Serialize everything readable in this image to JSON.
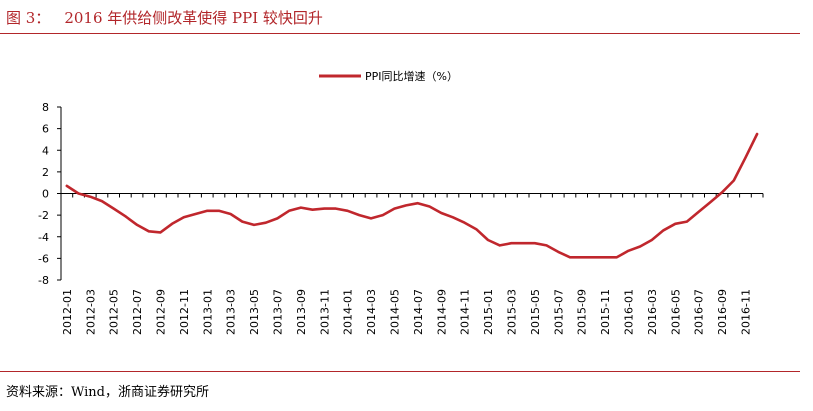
{
  "header": {
    "figure_label": "图 3：",
    "title": "2016 年供给侧改革使得 PPI 较快回升"
  },
  "footer": {
    "source": "资料来源：Wind，浙商证券研究所"
  },
  "colors": {
    "accent": "#b2262a",
    "series": "#c0272d",
    "axis": "#000000"
  },
  "chart_data": {
    "type": "line",
    "title": "",
    "xlabel": "",
    "ylabel": "",
    "ylim": [
      -8,
      8
    ],
    "yticks": [
      "8",
      "6",
      "4",
      "2",
      "0",
      "-2",
      "-4",
      "-6",
      "-8"
    ],
    "grid": false,
    "legend_position": "top-center",
    "x": [
      "2012-01",
      "2012-02",
      "2012-03",
      "2012-04",
      "2012-05",
      "2012-06",
      "2012-07",
      "2012-08",
      "2012-09",
      "2012-10",
      "2012-11",
      "2012-12",
      "2013-01",
      "2013-02",
      "2013-03",
      "2013-04",
      "2013-05",
      "2013-06",
      "2013-07",
      "2013-08",
      "2013-09",
      "2013-10",
      "2013-11",
      "2013-12",
      "2014-01",
      "2014-02",
      "2014-03",
      "2014-04",
      "2014-05",
      "2014-06",
      "2014-07",
      "2014-08",
      "2014-09",
      "2014-10",
      "2014-11",
      "2014-12",
      "2015-01",
      "2015-02",
      "2015-03",
      "2015-04",
      "2015-05",
      "2015-06",
      "2015-07",
      "2015-08",
      "2015-09",
      "2015-10",
      "2015-11",
      "2015-12",
      "2016-01",
      "2016-02",
      "2016-03",
      "2016-04",
      "2016-05",
      "2016-06",
      "2016-07",
      "2016-08",
      "2016-09",
      "2016-10",
      "2016-11",
      "2016-12"
    ],
    "x_tick_labels": [
      "2012-01",
      "2012-03",
      "2012-05",
      "2012-07",
      "2012-09",
      "2012-11",
      "2013-01",
      "2013-03",
      "2013-05",
      "2013-07",
      "2013-09",
      "2013-11",
      "2014-01",
      "2014-03",
      "2014-05",
      "2014-07",
      "2014-09",
      "2014-11",
      "2015-01",
      "2015-03",
      "2015-05",
      "2015-07",
      "2015-09",
      "2015-11",
      "2016-01",
      "2016-03",
      "2016-05",
      "2016-07",
      "2016-09",
      "2016-11"
    ],
    "series": [
      {
        "name": "PPI同比增速（%）",
        "values": [
          0.7,
          0.0,
          -0.3,
          -0.7,
          -1.4,
          -2.1,
          -2.9,
          -3.5,
          -3.6,
          -2.8,
          -2.2,
          -1.9,
          -1.6,
          -1.6,
          -1.9,
          -2.6,
          -2.9,
          -2.7,
          -2.3,
          -1.6,
          -1.3,
          -1.5,
          -1.4,
          -1.4,
          -1.6,
          -2.0,
          -2.3,
          -2.0,
          -1.4,
          -1.1,
          -0.9,
          -1.2,
          -1.8,
          -2.2,
          -2.7,
          -3.3,
          -4.3,
          -4.8,
          -4.6,
          -4.6,
          -4.6,
          -4.8,
          -5.4,
          -5.9,
          -5.9,
          -5.9,
          -5.9,
          -5.9,
          -5.3,
          -4.9,
          -4.3,
          -3.4,
          -2.8,
          -2.6,
          -1.7,
          -0.8,
          0.1,
          1.2,
          3.3,
          5.5
        ]
      }
    ]
  }
}
